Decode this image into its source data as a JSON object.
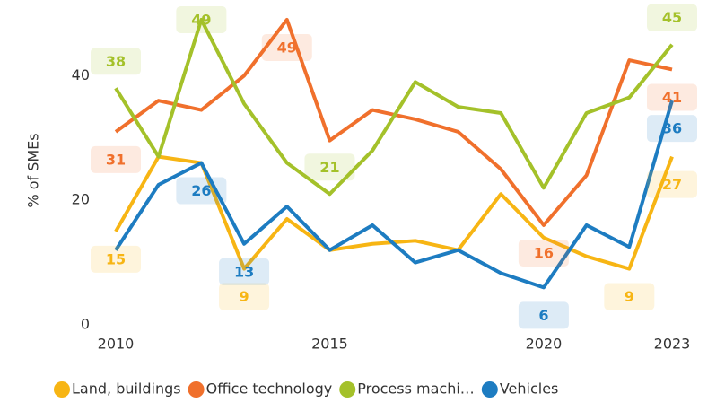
{
  "chart_data": {
    "type": "line",
    "y_label": "% of SMEs",
    "x": [
      2010,
      2011,
      2012,
      2013,
      2014,
      2015,
      2016,
      2017,
      2018,
      2019,
      2020,
      2021,
      2022,
      2023
    ],
    "xlim": [
      2010,
      2023
    ],
    "xticks": [
      2010,
      2015,
      2020,
      2023
    ],
    "ylim": [
      0,
      50
    ],
    "yticks": [
      0,
      20,
      40
    ],
    "grid": false,
    "legend": "bottom",
    "series": [
      {
        "name": "Land, buildings",
        "color": "#f7b514",
        "values": [
          15,
          27,
          26,
          9,
          17,
          12,
          13,
          13.5,
          12,
          21,
          14,
          11,
          9,
          27
        ],
        "value_labels": [
          "15",
          null,
          null,
          "9",
          null,
          null,
          null,
          null,
          null,
          null,
          null,
          null,
          "9",
          "27"
        ]
      },
      {
        "name": "Office technology",
        "color": "#f0702c",
        "values": [
          31,
          36,
          34.5,
          40,
          49,
          29.6,
          34.5,
          33,
          31,
          25,
          16,
          24,
          42.5,
          41
        ],
        "value_labels": [
          "31",
          null,
          null,
          null,
          "49",
          null,
          null,
          null,
          null,
          null,
          "16",
          null,
          null,
          "41"
        ]
      },
      {
        "name": "Process machi…",
        "color": "#a4c12a",
        "values": [
          38,
          27,
          49,
          35.5,
          26,
          21,
          28,
          39,
          35,
          34,
          22,
          34,
          36.5,
          45
        ],
        "value_labels": [
          "38",
          null,
          "49",
          null,
          null,
          "21",
          null,
          null,
          null,
          null,
          null,
          null,
          null,
          "45"
        ]
      },
      {
        "name": "Vehicles",
        "color": "#1d7cc1",
        "values": [
          12,
          22.5,
          26,
          13,
          19,
          12,
          16,
          10,
          12,
          8.3,
          6,
          16,
          12.5,
          36
        ],
        "value_labels": [
          null,
          null,
          "26",
          "13",
          null,
          null,
          null,
          null,
          null,
          null,
          "6",
          null,
          null,
          "36"
        ]
      }
    ]
  }
}
